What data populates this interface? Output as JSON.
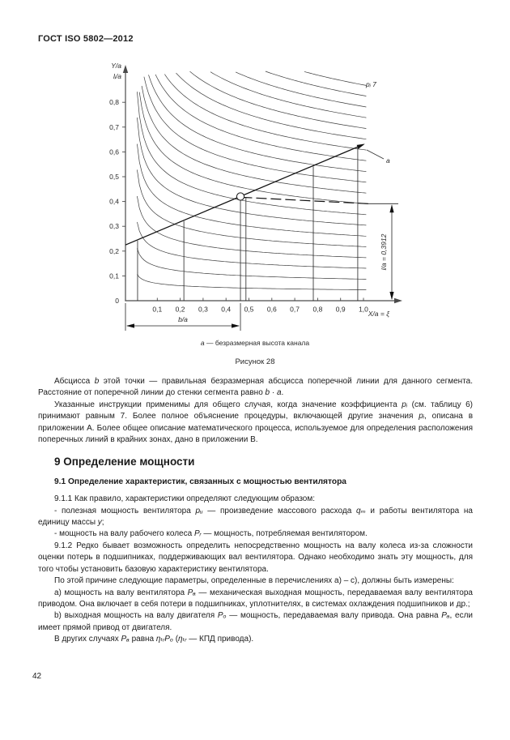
{
  "page": {
    "header": "ГОСТ ISO 5802—2012",
    "page_number": "42"
  },
  "figure": {
    "y_axis_title_1": "Y/a",
    "y_axis_title_2": "lᵢ/a",
    "x_axis_title": "X/a = ξ",
    "origin_label": "0",
    "curve_family_label": "pᵢ 7",
    "line_label": "a",
    "width_dim_label": "b/a",
    "height_dim_label": "l/a = 0,3912",
    "caption_var": "а",
    "caption_text": "— безразмерная высота канала",
    "figure_label": "Рисунок 28"
  },
  "chart_data": {
    "type": "line",
    "x_axis": {
      "label": "X/a = ξ",
      "range": [
        0,
        1.0
      ],
      "ticks": [
        0.1,
        0.2,
        0.3,
        0.4,
        0.5,
        0.6,
        0.7,
        0.8,
        0.9,
        1.0
      ]
    },
    "y_axis": {
      "label": "Y/a, lᵢ/a",
      "range": [
        0,
        0.9
      ],
      "ticks": [
        0.1,
        0.2,
        0.3,
        0.4,
        0.5,
        0.6,
        0.7,
        0.8
      ]
    },
    "grid": false,
    "curve_family": {
      "label": "pᵢ 7",
      "model": "y = c·(X/a)^(-0.2)",
      "shape_exponent": 0.2,
      "right_edge_values": [
        0.044,
        0.087,
        0.131,
        0.174,
        0.218,
        0.261,
        0.305,
        0.348,
        0.392,
        0.435,
        0.479,
        0.522,
        0.566,
        0.609,
        0.653,
        0.696,
        0.74,
        0.783,
        0.827,
        0.87
      ]
    },
    "line_a": {
      "label": "a",
      "points": [
        [
          0,
          0.24
        ],
        [
          1.0,
          0.63
        ]
      ]
    },
    "marked_point": {
      "x": 0.463,
      "y": 0.42
    },
    "dashed_line": {
      "points": [
        [
          0.468,
          0.417
        ],
        [
          1.021,
          0.391
        ]
      ]
    },
    "traverse_lines_x": [
      0.014,
      0.216,
      0.463,
      0.781,
      0.975
    ],
    "drop_line_x": 0.487,
    "b_over_a_span": [
      0,
      0.463
    ],
    "l_over_a": 0.3912
  },
  "body": {
    "section_heading": "9 Определение мощности",
    "subsection_heading": "9.1 Определение характеристик, связанных с мощностью вентилятора",
    "paragraphs_top": [
      {
        "segments": [
          {
            "text": "Абсцисса "
          },
          {
            "text": "b",
            "italic": true
          },
          {
            "text": " этой точки — правильная безразмерная абсцисса поперечной линии для данного сегмента. Расстояние от поперечной линии до стенки сегмента равно "
          },
          {
            "text": "b",
            "italic": true
          },
          {
            "text": " · "
          },
          {
            "text": "a",
            "italic": true
          },
          {
            "text": "."
          }
        ]
      },
      {
        "segments": [
          {
            "text": "Указанные инструкции применимы для общего случая, когда значение коэффициента "
          },
          {
            "text": "pᵢ",
            "italic": true
          },
          {
            "text": " (см. таблицу 6) принимают равным 7. Более полное объяснение процедуры, включающей другие значения "
          },
          {
            "text": "pᵢ",
            "italic": true
          },
          {
            "text": ", описана в приложении А. Более общее описание математического процесса, используемое для определения расположения поперечных линий в крайних зонах, дано в приложении В."
          }
        ]
      }
    ],
    "paragraphs_main": [
      {
        "segments": [
          {
            "text": "9.1.1 Как правило, характеристики определяют следующим образом:"
          }
        ]
      },
      {
        "segments": [
          {
            "text": "- полезная мощность вентилятора "
          },
          {
            "text": "pᵤ",
            "italic": true
          },
          {
            "text": " — произведение массового расхода "
          },
          {
            "text": "qₘ",
            "italic": true
          },
          {
            "text": " и работы вентилятора на единицу массы "
          },
          {
            "text": "y",
            "italic": true
          },
          {
            "text": ";"
          }
        ]
      },
      {
        "segments": [
          {
            "text": "- мощность на валу рабочего колеса "
          },
          {
            "text": "Pᵣ",
            "italic": true
          },
          {
            "text": " — мощность, потребляемая вентилятором."
          }
        ]
      },
      {
        "segments": [
          {
            "text": "9.1.2 Редко бывает возможность определить непосредственно мощность на валу колеса из-за сложности оценки потерь в подшипниках, поддерживающих вал вентилятора. Однако необходимо знать эту мощность, для того чтобы установить базовую характеристику вентилятора."
          }
        ]
      },
      {
        "segments": [
          {
            "text": "По этой причине следующие параметры, определенные в перечислениях a) – c), должны быть измерены:"
          }
        ]
      },
      {
        "segments": [
          {
            "text": "a) мощность на валу вентилятора "
          },
          {
            "text": "Pₐ",
            "italic": true
          },
          {
            "text": " — механическая выходная мощность, передаваемая валу вентилятора приводом. Она включает в себя потери в подшипниках, уплотнителях, в системах охлаждения подшипников и др.;"
          }
        ]
      },
      {
        "segments": [
          {
            "text": "b) выходная мощность на валу двигателя "
          },
          {
            "text": "Pₒ",
            "italic": true
          },
          {
            "text": " — мощность, передаваемая валу привода. Она равна "
          },
          {
            "text": "Pₐ",
            "italic": true
          },
          {
            "text": ", если имеет прямой привод от двигателя."
          }
        ]
      },
      {
        "segments": [
          {
            "text": "В других случаях "
          },
          {
            "text": "Pₐ",
            "italic": true
          },
          {
            "text": " равна "
          },
          {
            "text": "ηₜᵣPₒ",
            "italic": true
          },
          {
            "text": " ("
          },
          {
            "text": "ηₜᵣ",
            "italic": true
          },
          {
            "text": " — КПД привода)."
          }
        ]
      }
    ]
  }
}
